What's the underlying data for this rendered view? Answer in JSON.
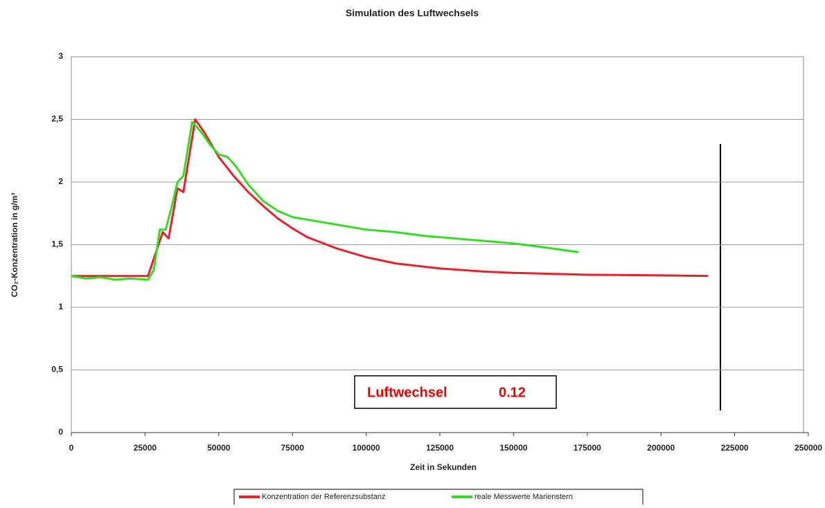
{
  "chart_data": {
    "type": "line",
    "title": "Simulation des Luftwechsels",
    "x_label": "Zeit in Sekunden",
    "y_label": "CO₂-Konzentration in g/m³",
    "annotation": {
      "label": "Luftwechsel",
      "value": "0.12"
    },
    "xlim": [
      0,
      250000
    ],
    "xticks": [
      0,
      25000,
      50000,
      75000,
      100000,
      125000,
      150000,
      175000,
      200000,
      225000,
      250000
    ],
    "ylim": [
      0,
      3
    ],
    "yticks": [
      0,
      {
        "value": 0.5,
        "label": "0,5"
      },
      1,
      {
        "value": 1.5,
        "label": "1,5"
      },
      2,
      {
        "value": 2.5,
        "label": "2,5"
      },
      3
    ],
    "grid": true,
    "legend": "bottom",
    "series": [
      {
        "name": "Konzentration der Referenzsubstanz",
        "color": "#e8202a",
        "x": [
          0,
          26000,
          31000,
          33000,
          36000,
          38000,
          42000,
          45000,
          50000,
          55000,
          60000,
          65000,
          70000,
          75000,
          80000,
          90000,
          100000,
          110000,
          125000,
          140000,
          150000,
          175000,
          200000,
          216000
        ],
        "values": [
          1.25,
          1.25,
          1.6,
          1.55,
          1.95,
          1.92,
          2.5,
          2.4,
          2.2,
          2.05,
          1.92,
          1.81,
          1.71,
          1.63,
          1.56,
          1.47,
          1.4,
          1.35,
          1.31,
          1.285,
          1.275,
          1.26,
          1.255,
          1.25
        ]
      },
      {
        "name": "reale Messwerte Marienstern",
        "color": "#33dd22",
        "x": [
          0,
          5000,
          10000,
          15000,
          20000,
          26000,
          28000,
          30000,
          32000,
          34000,
          36000,
          38000,
          41000,
          44000,
          47000,
          50000,
          53000,
          56000,
          60000,
          65000,
          70000,
          75000,
          80000,
          90000,
          100000,
          110000,
          120000,
          130000,
          140000,
          150000,
          160000,
          172000
        ],
        "values": [
          1.25,
          1.23,
          1.24,
          1.22,
          1.23,
          1.22,
          1.3,
          1.62,
          1.62,
          1.8,
          2.0,
          2.05,
          2.48,
          2.4,
          2.3,
          2.22,
          2.2,
          2.12,
          1.98,
          1.85,
          1.77,
          1.72,
          1.7,
          1.66,
          1.62,
          1.6,
          1.57,
          1.55,
          1.53,
          1.51,
          1.48,
          1.44
        ]
      }
    ]
  }
}
